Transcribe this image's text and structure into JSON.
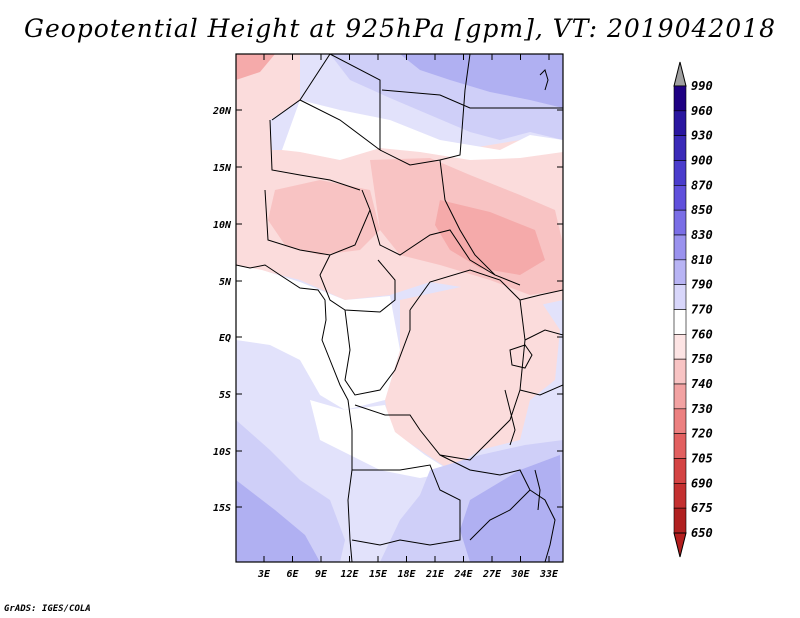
{
  "title": "Geopotential Height at 925hPa [gpm], VT: 2019042018",
  "credit": "GrADS: IGES/COLA",
  "map": {
    "lat_labels": [
      "20N",
      "15N",
      "10N",
      "5N",
      "EQ",
      "5S",
      "10S",
      "15S"
    ],
    "lon_labels": [
      "3E",
      "6E",
      "9E",
      "12E",
      "15E",
      "18E",
      "21E",
      "24E",
      "27E",
      "30E",
      "33E"
    ],
    "field_colors": {
      "pink_light": "#fbdcdc",
      "pink": "#f8c3c3",
      "pink_mid": "#f5aaaa",
      "white": "#ffffff",
      "blue_pale": "#e2e2fb",
      "blue_light": "#cfcff8",
      "blue": "#b0b0f2",
      "blue_mid": "#9a9aee"
    }
  },
  "colorbar": {
    "labels": [
      "990",
      "960",
      "930",
      "900",
      "870",
      "850",
      "830",
      "810",
      "790",
      "770",
      "760",
      "750",
      "740",
      "730",
      "720",
      "705",
      "690",
      "675",
      "650"
    ],
    "colors": [
      "#1e0082",
      "#2a16a0",
      "#3a2ab8",
      "#4a3ccc",
      "#6050dc",
      "#7a6ee6",
      "#9a92ee",
      "#b8b4f4",
      "#d8d6fa",
      "#ffffff",
      "#fde4e4",
      "#f8c4c4",
      "#f2a2a2",
      "#ec8080",
      "#e26060",
      "#d44444",
      "#c43030",
      "#b02020"
    ],
    "arrow_top_color": "#a0a0a0",
    "arrow_bottom_color": "#b41e1e"
  }
}
